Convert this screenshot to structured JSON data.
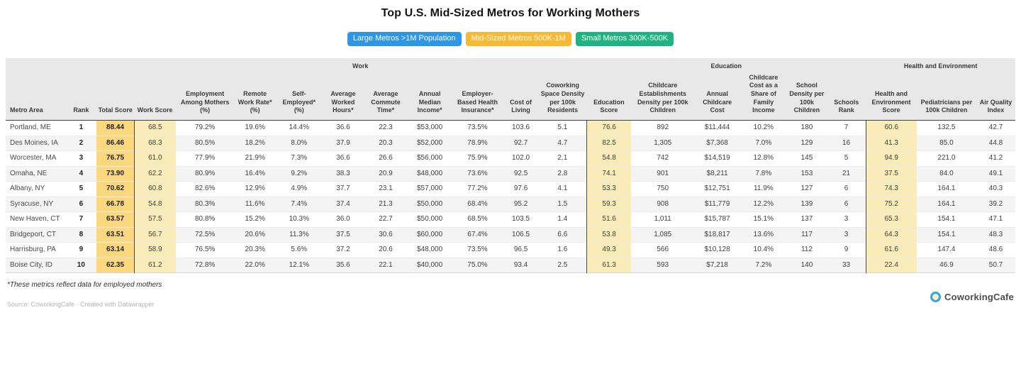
{
  "title": "Top U.S. Mid-Sized Metros for Working Mothers",
  "tabs": [
    {
      "label": "Large Metros >1M Population",
      "color": "#2d96e8",
      "active": false
    },
    {
      "label": "Mid-Sized Metros 500K-1M",
      "color": "#f8b831",
      "active": true
    },
    {
      "label": "Small Metros 300K-500K",
      "color": "#1eb380",
      "active": false
    }
  ],
  "colors": {
    "tab_blue": "#2d96e8",
    "tab_orange": "#f8b831",
    "tab_green": "#1eb380",
    "header_bg": "#e8e8e8",
    "row_alt_bg": "#f4f4f4",
    "total_score_bg": "#fbd87e",
    "score_bg": "#faecb9",
    "group_separator": "#4a4a4a",
    "logo_blue": "#36a3dd"
  },
  "chart_data": {
    "type": "table",
    "title": "Top U.S. Mid-Sized Metros for Working Mothers",
    "groups": [
      {
        "label": "",
        "span": 3
      },
      {
        "label": "Work",
        "span": 10
      },
      {
        "label": "Education",
        "span": 6
      },
      {
        "label": "Health and Environment",
        "span": 3
      }
    ],
    "columns": [
      "Metro Area",
      "Rank",
      "Total Score",
      "Work Score",
      "Employment Among Mothers (%)",
      "Remote Work Rate* (%)",
      "Self-Employed* (%)",
      "Average Worked Hours*",
      "Average Commute Time*",
      "Annual Median Income*",
      "Employer-Based Health Insurance*",
      "Cost of Living",
      "Coworking Space Density per 100k Residents",
      "Education Score",
      "Childcare Establishments Density per 100k Children",
      "Annual Childcare Cost",
      "Childcare Cost as a Share of Family Income",
      "School Density per 100k Children",
      "Schools Rank",
      "Health and Environment Score",
      "Pediatricians per 100k Children",
      "Air Quality Index"
    ],
    "rows": [
      [
        "Portland, ME",
        "1",
        "88.44",
        "68.5",
        "79.2%",
        "19.6%",
        "14.4%",
        "36.6",
        "22.3",
        "$53,000",
        "73.5%",
        "103.6",
        "5.1",
        "76.6",
        "892",
        "$11,444",
        "10.2%",
        "180",
        "7",
        "60.6",
        "132.5",
        "42.7"
      ],
      [
        "Des Moines, IA",
        "2",
        "86.46",
        "68.3",
        "80.5%",
        "18.2%",
        "8.0%",
        "37.9",
        "20.3",
        "$52,000",
        "78.9%",
        "92.7",
        "4.7",
        "82.5",
        "1,305",
        "$7,368",
        "7.0%",
        "129",
        "16",
        "41.3",
        "85.0",
        "44.8"
      ],
      [
        "Worcester, MA",
        "3",
        "76.75",
        "61.0",
        "77.9%",
        "21.9%",
        "7.3%",
        "36.6",
        "26.6",
        "$56,000",
        "75.9%",
        "102.0",
        "2.1",
        "54.8",
        "742",
        "$14,519",
        "12.8%",
        "145",
        "5",
        "94.9",
        "221.0",
        "41.2"
      ],
      [
        "Omaha, NE",
        "4",
        "73.90",
        "62.2",
        "80.9%",
        "16.4%",
        "9.2%",
        "38.3",
        "20.9",
        "$48,000",
        "73.6%",
        "92.5",
        "2.8",
        "74.1",
        "901",
        "$8,211",
        "7.8%",
        "153",
        "21",
        "37.5",
        "84.0",
        "49.1"
      ],
      [
        "Albany, NY",
        "5",
        "70.62",
        "60.8",
        "82.6%",
        "12.9%",
        "4.9%",
        "37.7",
        "23.1",
        "$57,000",
        "77.2%",
        "97.6",
        "4.1",
        "53.3",
        "750",
        "$12,751",
        "11.9%",
        "127",
        "6",
        "74.3",
        "164.1",
        "40.3"
      ],
      [
        "Syracuse, NY",
        "6",
        "66.78",
        "54.8",
        "80.3%",
        "11.6%",
        "7.4%",
        "37.4",
        "21.3",
        "$50,000",
        "68.4%",
        "95.2",
        "1.5",
        "59.3",
        "908",
        "$11,779",
        "12.2%",
        "139",
        "6",
        "75.2",
        "164.1",
        "39.2"
      ],
      [
        "New Haven, CT",
        "7",
        "63.57",
        "57.5",
        "80.8%",
        "15.2%",
        "10.3%",
        "36.0",
        "22.7",
        "$50,000",
        "68.5%",
        "103.5",
        "1.4",
        "51.6",
        "1,011",
        "$15,787",
        "15.1%",
        "137",
        "3",
        "65.3",
        "154.1",
        "47.1"
      ],
      [
        "Bridgeport, CT",
        "8",
        "63.51",
        "56.7",
        "72.5%",
        "20.6%",
        "11.3%",
        "37.5",
        "30.6",
        "$60,000",
        "67.4%",
        "106.5",
        "6.6",
        "53.8",
        "1,085",
        "$18,817",
        "13.6%",
        "117",
        "3",
        "64.3",
        "154.1",
        "48.3"
      ],
      [
        "Harrisburg, PA",
        "9",
        "63.14",
        "58.9",
        "76.5%",
        "20.3%",
        "5.6%",
        "37.2",
        "20.6",
        "$48,000",
        "73.5%",
        "96.5",
        "1.6",
        "49.3",
        "566",
        "$10,128",
        "10.4%",
        "112",
        "9",
        "61.6",
        "147.4",
        "48.6"
      ],
      [
        "Boise City, ID",
        "10",
        "62.35",
        "61.2",
        "72.8%",
        "22.0%",
        "12.1%",
        "35.6",
        "22.1",
        "$40,000",
        "75.0%",
        "93.4",
        "2.5",
        "61.3",
        "593",
        "$7,218",
        "7.2%",
        "140",
        "33",
        "22.4",
        "46.9",
        "50.7"
      ]
    ],
    "layout": {
      "widths": [
        80,
        42,
        50,
        56,
        78,
        56,
        62,
        56,
        58,
        60,
        68,
        48,
        64,
        60,
        84,
        62,
        62,
        54,
        52,
        68,
        80,
        52
      ],
      "total_score_col": 2,
      "score_cols": [
        3,
        13,
        19
      ],
      "highlight_note": "Total Score column dark yellow; Work/Education/Health scores light yellow with dark left separator"
    }
  },
  "footnote": "*These metrics reflect data for employed mothers",
  "source": "Source: CoworkingCafe · Created with Datawrapper",
  "logo": {
    "text": "CoworkingCafe"
  }
}
